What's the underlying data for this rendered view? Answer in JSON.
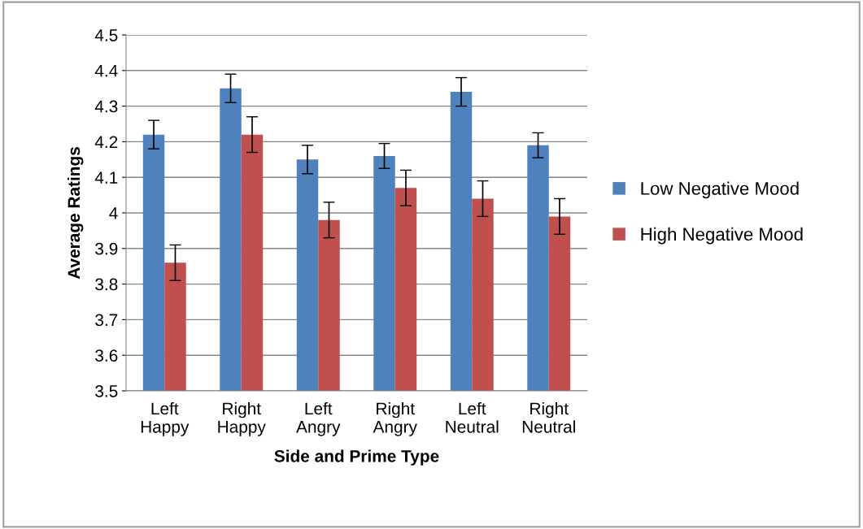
{
  "chart_data": {
    "type": "bar",
    "xlabel": "Side and Prime Type",
    "ylabel": "Average Ratings",
    "categories": [
      "Left\nHappy",
      "Right\nHappy",
      "Left\nAngry",
      "Right\nAngry",
      "Left\nNeutral",
      "Right\nNeutral"
    ],
    "series": [
      {
        "name": "Low Negative Mood",
        "color": "#4f81bd",
        "values": [
          4.22,
          4.35,
          4.15,
          4.16,
          4.34,
          4.19
        ],
        "errors": [
          0.04,
          0.04,
          0.04,
          0.035,
          0.04,
          0.035
        ]
      },
      {
        "name": "High Negative Mood",
        "color": "#c0504d",
        "values": [
          3.86,
          4.22,
          3.98,
          4.07,
          4.04,
          3.99
        ],
        "errors": [
          0.05,
          0.05,
          0.05,
          0.05,
          0.05,
          0.05
        ]
      }
    ],
    "ylim": [
      3.5,
      4.5
    ],
    "yticks": [
      3.5,
      3.6,
      3.7,
      3.8,
      3.9,
      4,
      4.1,
      4.2,
      4.3,
      4.4,
      4.5
    ],
    "grid": "y",
    "legend": "right"
  }
}
